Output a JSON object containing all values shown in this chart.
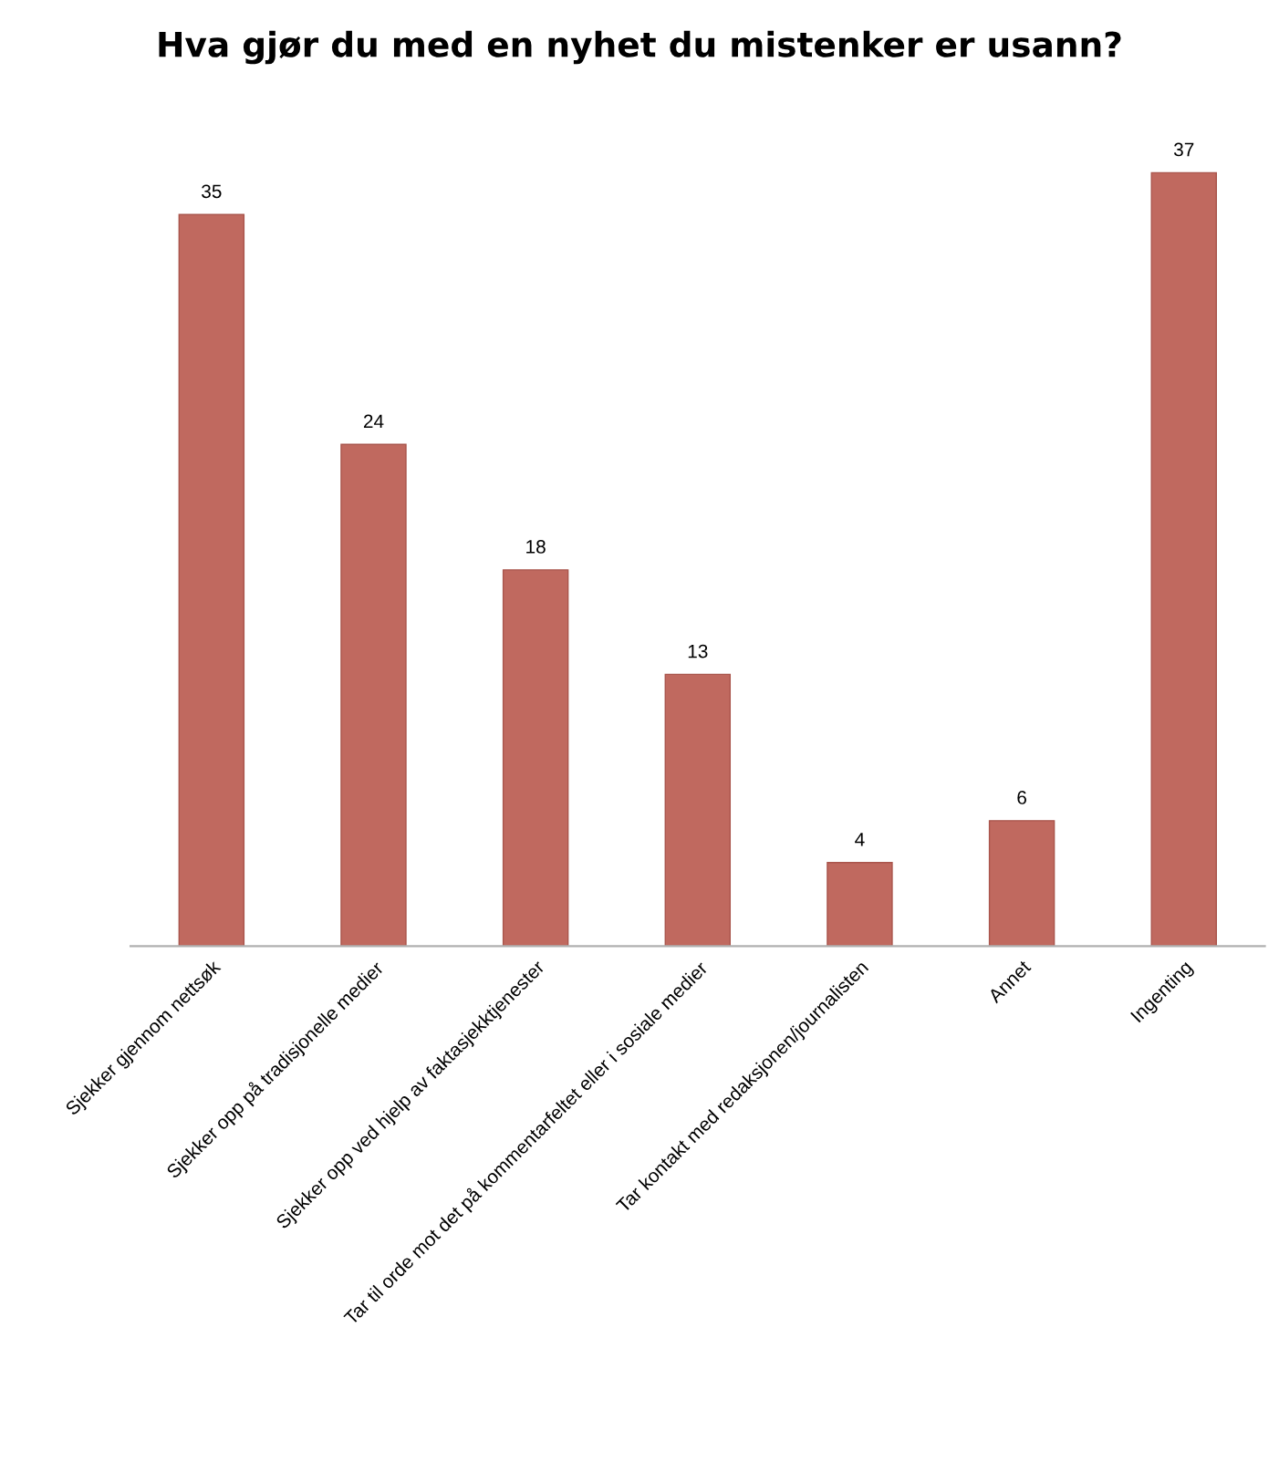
{
  "chart_data": {
    "type": "bar",
    "title": "Hva gjør du med en nyhet du mistenker er usann?",
    "categories": [
      "Sjekker gjennom nettsøk",
      "Sjekker opp på tradisjonelle medier",
      "Sjekker opp ved hjelp av faktasjekktjenester",
      "Tar til orde mot det på kommentarfeltet eller i sosiale medier",
      "Tar kontakt med redaksjonen/journalisten",
      "Annet",
      "Ingenting"
    ],
    "values": [
      35,
      24,
      18,
      13,
      4,
      6,
      37
    ],
    "color": "#c0695f",
    "data_labels": true,
    "grid": false,
    "legend": false
  }
}
